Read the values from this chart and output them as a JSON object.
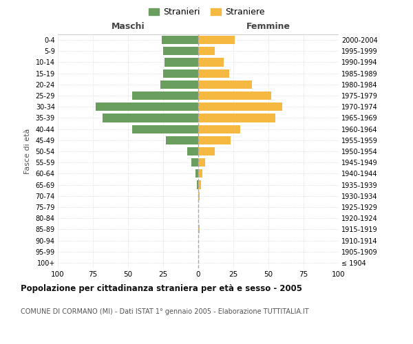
{
  "age_groups": [
    "100+",
    "95-99",
    "90-94",
    "85-89",
    "80-84",
    "75-79",
    "70-74",
    "65-69",
    "60-64",
    "55-59",
    "50-54",
    "45-49",
    "40-44",
    "35-39",
    "30-34",
    "25-29",
    "20-24",
    "15-19",
    "10-14",
    "5-9",
    "0-4"
  ],
  "birth_years": [
    "≤ 1904",
    "1905-1909",
    "1910-1914",
    "1915-1919",
    "1920-1924",
    "1925-1929",
    "1930-1934",
    "1935-1939",
    "1940-1944",
    "1945-1949",
    "1950-1954",
    "1955-1959",
    "1960-1964",
    "1965-1969",
    "1970-1974",
    "1975-1979",
    "1980-1984",
    "1985-1989",
    "1990-1994",
    "1995-1999",
    "2000-2004"
  ],
  "maschi": [
    0,
    0,
    0,
    0,
    0,
    0,
    0,
    1,
    2,
    5,
    8,
    23,
    47,
    68,
    73,
    47,
    27,
    25,
    24,
    25,
    26
  ],
  "femmine": [
    0,
    0,
    0,
    1,
    0,
    0,
    1,
    2,
    3,
    5,
    12,
    23,
    30,
    55,
    60,
    52,
    38,
    22,
    18,
    12,
    26
  ],
  "color_maschi": "#6a9e5e",
  "color_femmine": "#f5b942",
  "xlim": 100,
  "title": "Popolazione per cittadinanza straniera per età e sesso - 2005",
  "subtitle": "COMUNE DI CORMANO (MI) - Dati ISTAT 1° gennaio 2005 - Elaborazione TUTTITALIA.IT",
  "xlabel_maschi": "Maschi",
  "xlabel_femmine": "Femmine",
  "ylabel_left": "Fasce di età",
  "legend_maschi": "Stranieri",
  "legend_femmine": "Straniere",
  "background_color": "#ffffff",
  "grid_color": "#cccccc"
}
